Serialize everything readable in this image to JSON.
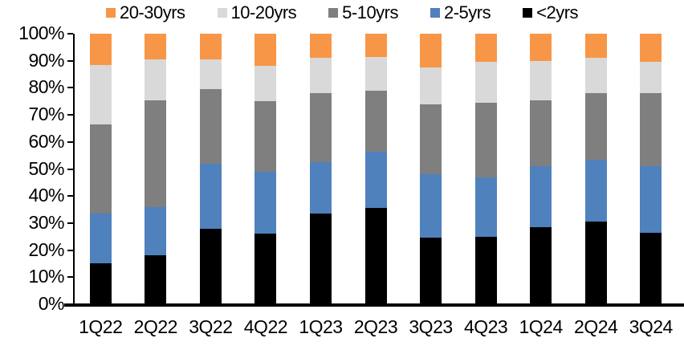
{
  "chart_data": {
    "type": "bar",
    "stacked": true,
    "stack_total": 100,
    "title": "",
    "xlabel": "",
    "ylabel": "",
    "ylim": [
      0,
      100
    ],
    "grid": false,
    "legend_position": "top",
    "y_tick_labels": [
      "0%",
      "10%",
      "20%",
      "30%",
      "40%",
      "50%",
      "60%",
      "70%",
      "80%",
      "90%",
      "100%"
    ],
    "categories": [
      "1Q22",
      "2Q22",
      "3Q22",
      "4Q22",
      "1Q23",
      "2Q23",
      "3Q23",
      "4Q23",
      "1Q24",
      "2Q24",
      "3Q24"
    ],
    "series": [
      {
        "name": "<2yrs",
        "color": "#000000",
        "values": [
          15,
          18,
          28,
          26,
          33.5,
          35.5,
          24.5,
          25,
          28.5,
          30.5,
          26.5
        ]
      },
      {
        "name": "2-5yrs",
        "color": "#4F81BD",
        "values": [
          18.5,
          18,
          24,
          23,
          19,
          21,
          23.5,
          22,
          22.5,
          23,
          24.5
        ]
      },
      {
        "name": "5-10yrs",
        "color": "#7F7F7F",
        "values": [
          33,
          39.5,
          27.5,
          26,
          25.5,
          22.5,
          26,
          27.5,
          24.5,
          24.5,
          27
        ]
      },
      {
        "name": "10-20yrs",
        "color": "#D9D9D9",
        "values": [
          22,
          15,
          11,
          13,
          13,
          12.5,
          13.5,
          15,
          14.5,
          13,
          11.5
        ]
      },
      {
        "name": "20-30yrs",
        "color": "#F79646",
        "values": [
          11.5,
          9.5,
          9.5,
          12,
          9,
          8.5,
          12.5,
          10.5,
          10,
          9,
          10.5
        ]
      }
    ],
    "legend_order": [
      "20-30yrs",
      "10-20yrs",
      "5-10yrs",
      "2-5yrs",
      "<2yrs"
    ]
  }
}
